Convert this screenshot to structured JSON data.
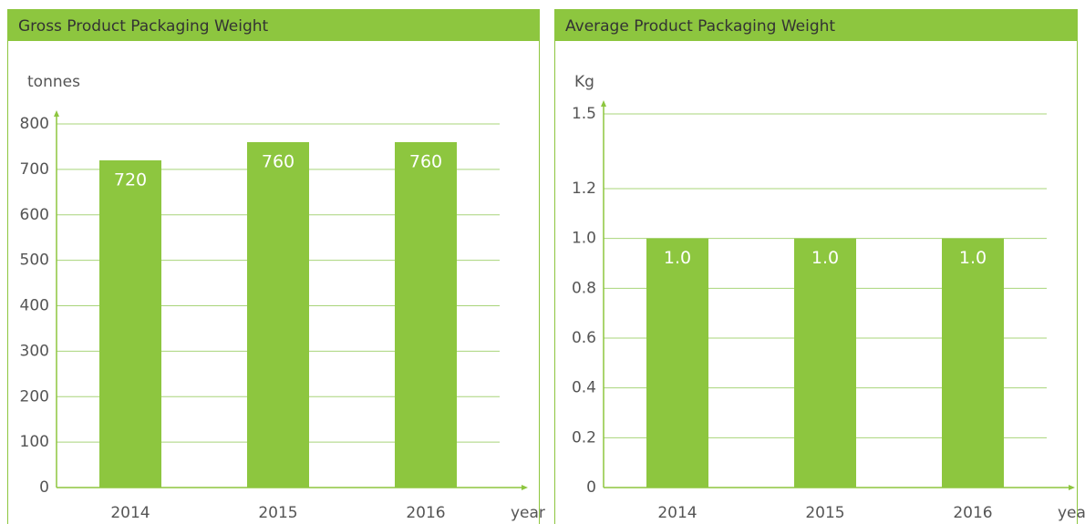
{
  "chart_data": [
    {
      "type": "bar",
      "title": "Gross Product Packaging Weight",
      "y_label": "tonnes",
      "x_label": "year",
      "categories": [
        "2014",
        "2015",
        "2016"
      ],
      "values": [
        720,
        760,
        760
      ],
      "color": "#8dc63f",
      "ylim": [
        0,
        800
      ],
      "yticks": [
        0,
        100,
        200,
        300,
        400,
        500,
        600,
        700,
        800
      ],
      "grid": true
    },
    {
      "type": "bar",
      "title": "Average Product Packaging Weight",
      "y_label": "Kg",
      "x_label": "year",
      "categories": [
        "2014",
        "2015",
        "2016"
      ],
      "values": [
        1,
        1,
        1
      ],
      "value_labels": [
        "1.0",
        "1.0",
        "1.0"
      ],
      "color": "#8dc63f",
      "ylim": [
        0,
        1.5
      ],
      "yticks": [
        0,
        0.2,
        0.4,
        0.6,
        0.8,
        {
          "value": 1,
          "label": "1.0"
        },
        1.2,
        1.5
      ],
      "grid": true
    }
  ]
}
